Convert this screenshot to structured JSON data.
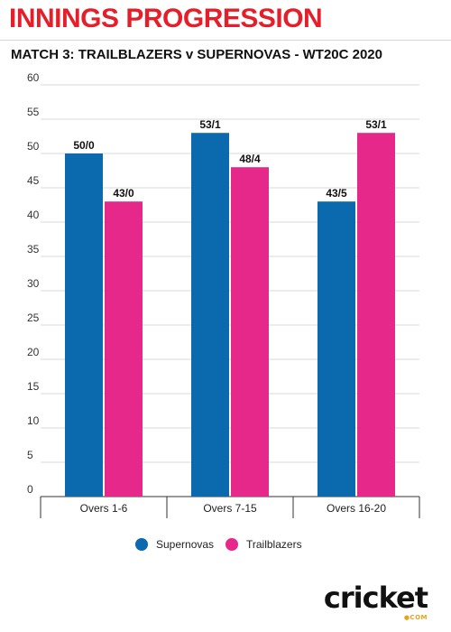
{
  "title": "INNINGS PROGRESSION",
  "subtitle": "MATCH 3: TRAILBLAZERS v SUPERNOVAS - WT20C 2020",
  "colors": {
    "title": "#e61e2a",
    "supernovas": "#0a6aad",
    "trailblazers": "#e6288a",
    "grid": "#d9d9d9"
  },
  "logo": {
    "text": "cricket",
    "sub": "●COM"
  },
  "chart_data": {
    "type": "bar",
    "categories": [
      "Overs 1-6",
      "Overs 7-15",
      "Overs 16-20"
    ],
    "series": [
      {
        "name": "Supernovas",
        "values": [
          50,
          53,
          43
        ],
        "labels": [
          "50/0",
          "53/1",
          "43/5"
        ],
        "color": "#0a6aad"
      },
      {
        "name": "Trailblazers",
        "values": [
          43,
          48,
          53
        ],
        "labels": [
          "43/0",
          "48/4",
          "53/1"
        ],
        "color": "#e6288a"
      }
    ],
    "ylim": [
      0,
      60
    ],
    "yticks": [
      0,
      5,
      10,
      15,
      20,
      25,
      30,
      35,
      40,
      45,
      50,
      55,
      60
    ],
    "grid": true,
    "legend": "bottom-center"
  }
}
